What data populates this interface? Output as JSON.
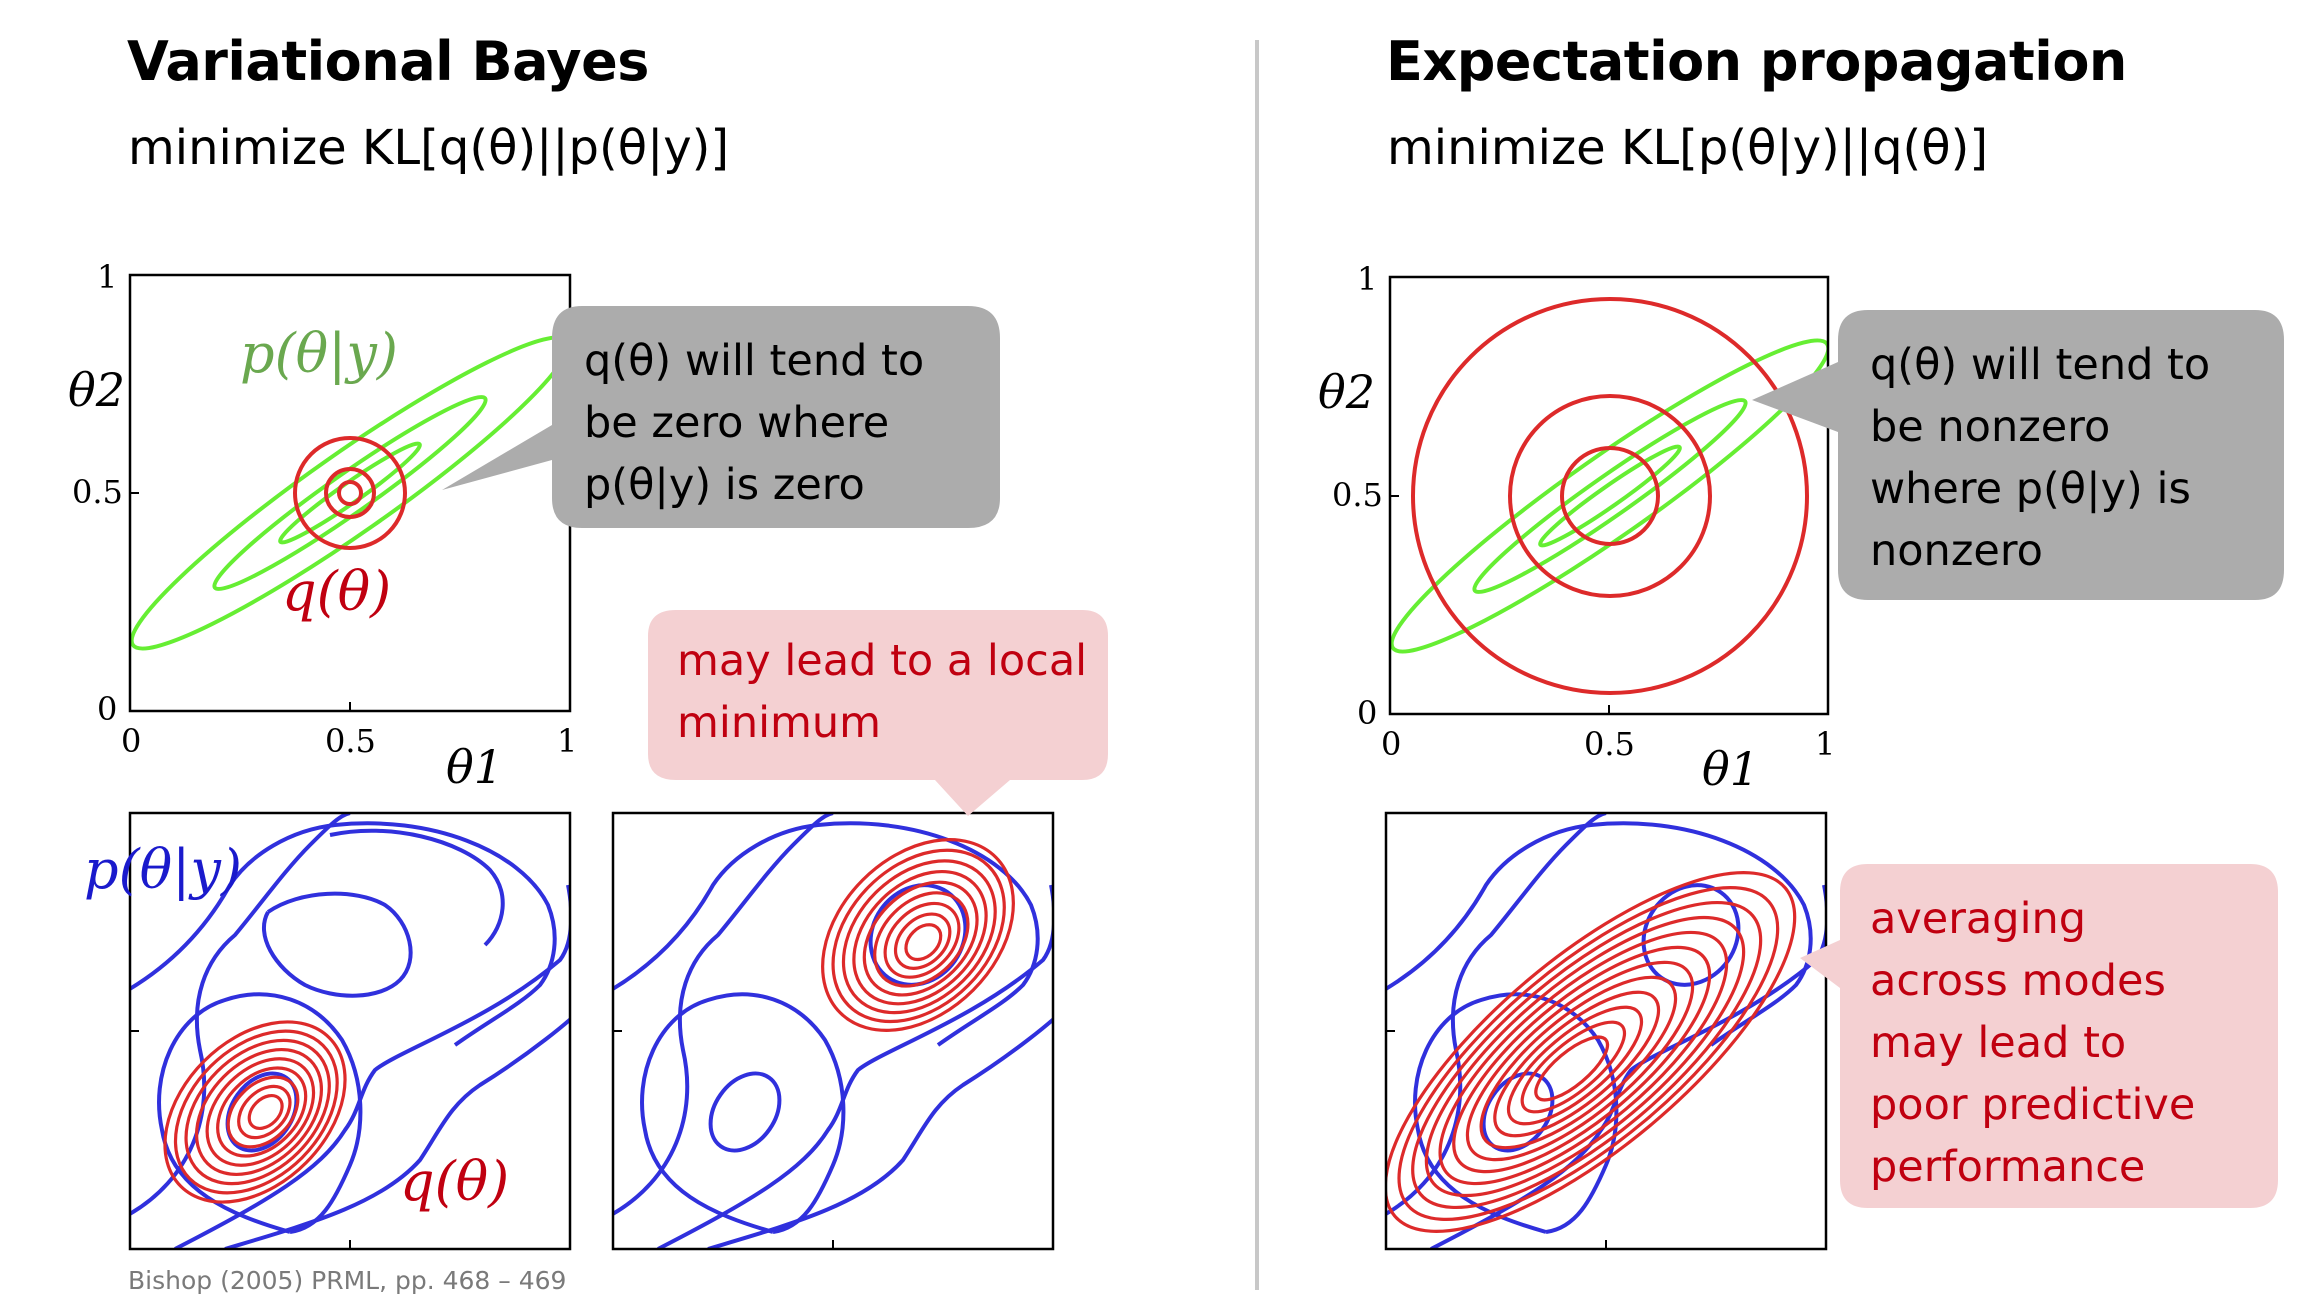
{
  "left": {
    "title": "Variational Bayes",
    "objective": "minimize KL[q(θ)||p(θ|y)]",
    "top_plot": {
      "x_ticks": [
        "0",
        "0.5",
        "1"
      ],
      "y_ticks": [
        "0",
        "0.5",
        "1"
      ],
      "x_label": "θ1",
      "y_label": "θ2",
      "label_p": "p(θ|y)",
      "label_q": "q(θ)"
    },
    "callout_gray": [
      "q(θ) will tend to",
      "be zero where",
      "p(θ|y) is zero"
    ],
    "callout_red": [
      "may lead to a local",
      "minimum"
    ],
    "bottom_plot_label_p": "p(θ|y)",
    "bottom_plot_label_q": "q(θ)"
  },
  "right": {
    "title": "Expectation propagation",
    "objective": "minimize KL[p(θ|y)||q(θ)]",
    "top_plot": {
      "x_ticks": [
        "0",
        "0.5",
        "1"
      ],
      "y_ticks": [
        "0",
        "0.5",
        "1"
      ],
      "x_label": "θ1",
      "y_label": "θ2"
    },
    "callout_gray": [
      "q(θ) will tend to",
      "be nonzero",
      "where p(θ|y) is",
      "nonzero"
    ],
    "callout_red": [
      "averaging",
      "across modes",
      "may lead to",
      "poor predictive",
      "performance"
    ]
  },
  "citation": "Bishop (2005) PRML, pp. 468 – 469",
  "colors": {
    "green": "#66ee33",
    "red": "#dd2a2a",
    "blue": "#3030dd",
    "gray_callout": "#acacac",
    "pink_callout": "#f4d0d2",
    "red_text": "#c00010"
  }
}
